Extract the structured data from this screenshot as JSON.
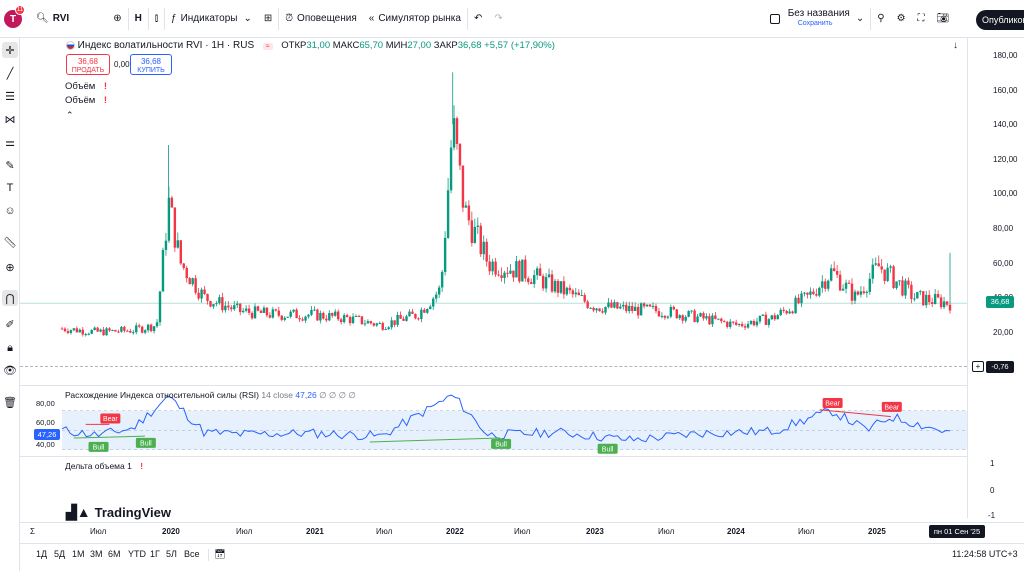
{
  "top": {
    "avatar_letter": "T",
    "badge_count": "11",
    "symbol": "RVI",
    "interval": "H",
    "indicators": "Индикаторы",
    "alerts": "Оповещения",
    "replay": "Симулятор рынка",
    "layout_name": "Без названия",
    "layout_saved": "Сохранить",
    "publish": "Опубликов"
  },
  "legend": {
    "title": "Индекс волатильности RVI · 1H · RUS",
    "open_k": "ОТКР",
    "open_v": "31,00",
    "high_k": "МАКС",
    "high_v": "65,70",
    "low_k": "МИН",
    "low_v": "27,00",
    "close_k": "ЗАКР",
    "close_v": "36,68",
    "change": "+5,57 (+17,90%)",
    "sell_price": "36,68",
    "sell_label": "ПРОДАТЬ",
    "spread": "0,00",
    "buy_price": "36,68",
    "buy_label": "КУПИТЬ",
    "vol1": "Объём",
    "vol2": "Объём"
  },
  "rsi_legend": {
    "title": "Расхождение Индекса относительной силы (RSI)",
    "params": "14 close",
    "value": "47,26",
    "extra": "∅ ∅ ∅ ∅"
  },
  "delta_legend": {
    "title": "Дельта объема",
    "param": "1"
  },
  "price_axis": [
    "180,00",
    "160,00",
    "140,00",
    "120,00",
    "100,00",
    "80,00",
    "60,00",
    "40,00",
    "20,00"
  ],
  "last_price": "36,68",
  "crosshair_value": "-0,76",
  "rsi_axis": [
    "80,00",
    "60,00",
    "40,00"
  ],
  "rsi_current": "47,26",
  "delta_axis": [
    "1",
    "0",
    "-1"
  ],
  "time_axis": [
    "Июл",
    "2020",
    "Июл",
    "2021",
    "Июл",
    "2022",
    "Июл",
    "2023",
    "Июл",
    "2024",
    "Июл",
    "2025"
  ],
  "time_cursor": "пн 01 Сен '25",
  "ranges": [
    "1Д",
    "5Д",
    "1М",
    "3М",
    "6М",
    "YTD",
    "1Г",
    "5Л",
    "Все"
  ],
  "clock": "11:24:58 UTC+3",
  "divergence_tags": [
    "Bear",
    "Bull",
    "Bull",
    "Bull",
    "Bull",
    "Bear",
    "Bear"
  ],
  "logo_text": "TradingView",
  "colors": {
    "up": "#089981",
    "down": "#f23645",
    "rsi": "#2962ff",
    "accent": "#131722"
  },
  "chart_data": {
    "type": "candlestick",
    "x_start": "2019-06",
    "x_end": "2025-09",
    "ylim": [
      15,
      180
    ],
    "price_series": [
      {
        "date": "2019-06",
        "value": 22
      },
      {
        "date": "2019-09",
        "value": 20
      },
      {
        "date": "2019-12",
        "value": 21
      },
      {
        "date": "2020-02",
        "value": 24
      },
      {
        "date": "2020-03",
        "value": 95
      },
      {
        "date": "2020-04",
        "value": 60
      },
      {
        "date": "2020-06",
        "value": 40
      },
      {
        "date": "2020-09",
        "value": 32
      },
      {
        "date": "2020-12",
        "value": 30
      },
      {
        "date": "2021-03",
        "value": 30
      },
      {
        "date": "2021-06",
        "value": 28
      },
      {
        "date": "2021-09",
        "value": 24
      },
      {
        "date": "2021-12",
        "value": 30
      },
      {
        "date": "2022-02",
        "value": 45
      },
      {
        "date": "2022-03",
        "value": 140
      },
      {
        "date": "2022-04",
        "value": 90
      },
      {
        "date": "2022-06",
        "value": 60
      },
      {
        "date": "2022-09",
        "value": 55
      },
      {
        "date": "2022-12",
        "value": 45
      },
      {
        "date": "2023-03",
        "value": 35
      },
      {
        "date": "2023-06",
        "value": 33
      },
      {
        "date": "2023-09",
        "value": 32
      },
      {
        "date": "2023-12",
        "value": 28
      },
      {
        "date": "2024-03",
        "value": 24
      },
      {
        "date": "2024-06",
        "value": 28
      },
      {
        "date": "2024-09",
        "value": 40
      },
      {
        "date": "2024-11",
        "value": 55
      },
      {
        "date": "2025-01",
        "value": 40
      },
      {
        "date": "2025-03",
        "value": 58
      },
      {
        "date": "2025-06",
        "value": 40
      },
      {
        "date": "2025-09",
        "value": 36.68
      }
    ],
    "rsi_series": [
      {
        "date": "2019-06",
        "value": 50
      },
      {
        "date": "2019-09",
        "value": 45
      },
      {
        "date": "2019-12",
        "value": 52
      },
      {
        "date": "2020-03",
        "value": 85
      },
      {
        "date": "2020-06",
        "value": 48
      },
      {
        "date": "2020-09",
        "value": 46
      },
      {
        "date": "2021-03",
        "value": 47
      },
      {
        "date": "2021-09",
        "value": 44
      },
      {
        "date": "2022-03",
        "value": 86
      },
      {
        "date": "2022-06",
        "value": 45
      },
      {
        "date": "2022-12",
        "value": 48
      },
      {
        "date": "2023-06",
        "value": 40
      },
      {
        "date": "2023-12",
        "value": 47
      },
      {
        "date": "2024-06",
        "value": 49
      },
      {
        "date": "2024-11",
        "value": 70
      },
      {
        "date": "2025-02",
        "value": 50
      },
      {
        "date": "2025-04",
        "value": 64
      },
      {
        "date": "2025-09",
        "value": 47.26
      }
    ]
  }
}
